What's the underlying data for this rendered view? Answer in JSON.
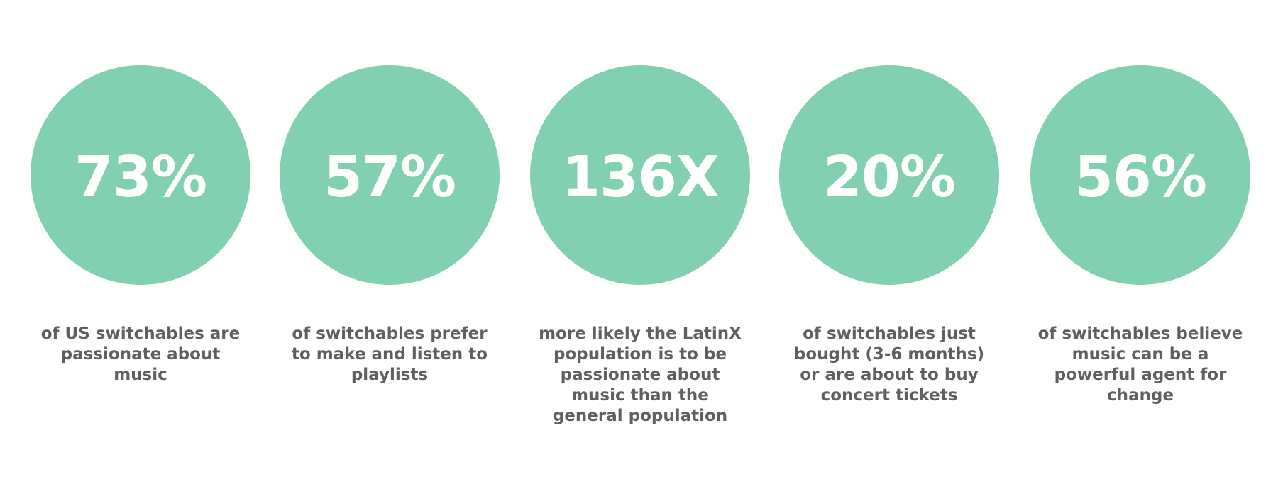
{
  "colors": {
    "circle": "#80d0b1",
    "value_text": "#ffffff",
    "caption_text": "#5f5f5f",
    "background": "#ffffff"
  },
  "stats": [
    {
      "value": "73%",
      "caption": "of US switchables are passionate about music"
    },
    {
      "value": "57%",
      "caption": "of switchables prefer to make and listen to playlists"
    },
    {
      "value": "136X",
      "caption": "more likely the LatinX population is to be passionate about music than the general population"
    },
    {
      "value": "20%",
      "caption": "of switchables just bought (3-6 months) or are about to buy concert tickets"
    },
    {
      "value": "56%",
      "caption": "of switchables believe music can be a powerful agent for change"
    }
  ]
}
